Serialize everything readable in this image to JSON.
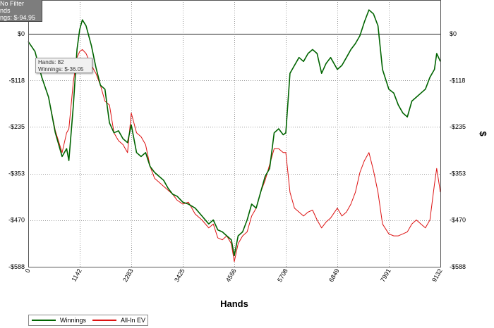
{
  "info_box": {
    "line1": "No Filter",
    "line2": "nds",
    "line3": "ngs: $-94.95"
  },
  "tooltip": {
    "hands": "Hands: 82",
    "winnings": "Winnings: $-36.05"
  },
  "legend": [
    {
      "label": "Winnings",
      "color": "#006400"
    },
    {
      "label": "All-In EV",
      "color": "#dd1111"
    }
  ],
  "chart_data": {
    "type": "line",
    "title": "",
    "xlabel": "Hands",
    "ylabel": "$",
    "xlim": [
      0,
      9132
    ],
    "ylim": [
      -588,
      85
    ],
    "x_ticks": [
      0,
      1142,
      2283,
      3425,
      4566,
      5708,
      6849,
      7991,
      9132
    ],
    "x_tick_labels": [
      "0",
      "1142",
      "2283",
      "3425",
      "4566",
      "5708",
      "6849",
      "7991",
      "9132"
    ],
    "y_ticks": [
      0,
      -118,
      -235,
      -353,
      -470,
      -588
    ],
    "y_tick_labels": [
      "$0",
      "-$118",
      "-$235",
      "-$353",
      "-$470",
      "-$588"
    ],
    "grid": true,
    "legend_position": "bottom-left",
    "series": [
      {
        "name": "Winnings",
        "color": "#006400",
        "x": [
          0,
          150,
          300,
          450,
          600,
          750,
          850,
          900,
          1000,
          1080,
          1140,
          1200,
          1280,
          1400,
          1500,
          1600,
          1700,
          1800,
          1900,
          2000,
          2100,
          2200,
          2283,
          2400,
          2500,
          2600,
          2700,
          2800,
          2900,
          3000,
          3100,
          3200,
          3300,
          3425,
          3550,
          3700,
          3850,
          4000,
          4100,
          4200,
          4300,
          4400,
          4500,
          4566,
          4650,
          4750,
          4850,
          4950,
          5050,
          5150,
          5250,
          5350,
          5450,
          5550,
          5650,
          5708,
          5800,
          5900,
          6000,
          6100,
          6200,
          6300,
          6400,
          6500,
          6600,
          6700,
          6849,
          6950,
          7050,
          7150,
          7250,
          7350,
          7450,
          7550,
          7650,
          7750,
          7850,
          7991,
          8100,
          8200,
          8300,
          8400,
          8500,
          8600,
          8700,
          8800,
          8900,
          9000,
          9050,
          9132
        ],
        "y": [
          -20,
          -45,
          -110,
          -160,
          -250,
          -310,
          -290,
          -320,
          -180,
          -40,
          10,
          35,
          20,
          -30,
          -85,
          -130,
          -140,
          -225,
          -250,
          -245,
          -265,
          -275,
          -230,
          -300,
          -310,
          -300,
          -335,
          -350,
          -360,
          -370,
          -390,
          -405,
          -410,
          -425,
          -430,
          -440,
          -460,
          -480,
          -470,
          -495,
          -500,
          -510,
          -520,
          -560,
          -510,
          -500,
          -470,
          -430,
          -440,
          -400,
          -360,
          -340,
          -250,
          -240,
          -255,
          -250,
          -100,
          -80,
          -60,
          -70,
          -50,
          -40,
          -50,
          -100,
          -75,
          -60,
          -90,
          -80,
          -60,
          -40,
          -25,
          -5,
          30,
          60,
          50,
          20,
          -90,
          -140,
          -150,
          -180,
          -200,
          -210,
          -170,
          -160,
          -150,
          -140,
          -110,
          -90,
          -50,
          -70
        ]
      },
      {
        "name": "All-In EV",
        "color": "#dd1111",
        "x": [
          0,
          150,
          300,
          450,
          600,
          750,
          850,
          900,
          1000,
          1080,
          1140,
          1200,
          1280,
          1400,
          1500,
          1600,
          1700,
          1800,
          1900,
          2000,
          2100,
          2200,
          2283,
          2400,
          2500,
          2600,
          2700,
          2800,
          2900,
          3000,
          3100,
          3200,
          3300,
          3425,
          3550,
          3700,
          3850,
          4000,
          4100,
          4200,
          4300,
          4400,
          4500,
          4566,
          4650,
          4750,
          4850,
          4950,
          5050,
          5150,
          5250,
          5350,
          5450,
          5550,
          5650,
          5708,
          5800,
          5900,
          6000,
          6100,
          6200,
          6300,
          6400,
          6500,
          6600,
          6700,
          6849,
          6950,
          7050,
          7150,
          7250,
          7350,
          7450,
          7550,
          7650,
          7750,
          7850,
          7991,
          8100,
          8200,
          8300,
          8400,
          8500,
          8600,
          8700,
          8800,
          8900,
          9000,
          9050,
          9132
        ],
        "y": [
          -20,
          -45,
          -110,
          -160,
          -245,
          -300,
          -250,
          -240,
          -120,
          -60,
          -45,
          -40,
          -50,
          -80,
          -100,
          -130,
          -170,
          -180,
          -250,
          -270,
          -280,
          -300,
          -200,
          -250,
          -260,
          -280,
          -335,
          -365,
          -375,
          -385,
          -395,
          -405,
          -420,
          -430,
          -425,
          -455,
          -470,
          -490,
          -480,
          -515,
          -520,
          -510,
          -530,
          -575,
          -530,
          -510,
          -500,
          -460,
          -440,
          -400,
          -370,
          -330,
          -290,
          -290,
          -300,
          -300,
          -400,
          -440,
          -450,
          -460,
          -450,
          -445,
          -470,
          -490,
          -475,
          -465,
          -440,
          -460,
          -450,
          -430,
          -400,
          -350,
          -320,
          -300,
          -345,
          -400,
          -480,
          -505,
          -510,
          -510,
          -505,
          -500,
          -480,
          -470,
          -480,
          -490,
          -470,
          -380,
          -340,
          -400
        ]
      }
    ]
  }
}
